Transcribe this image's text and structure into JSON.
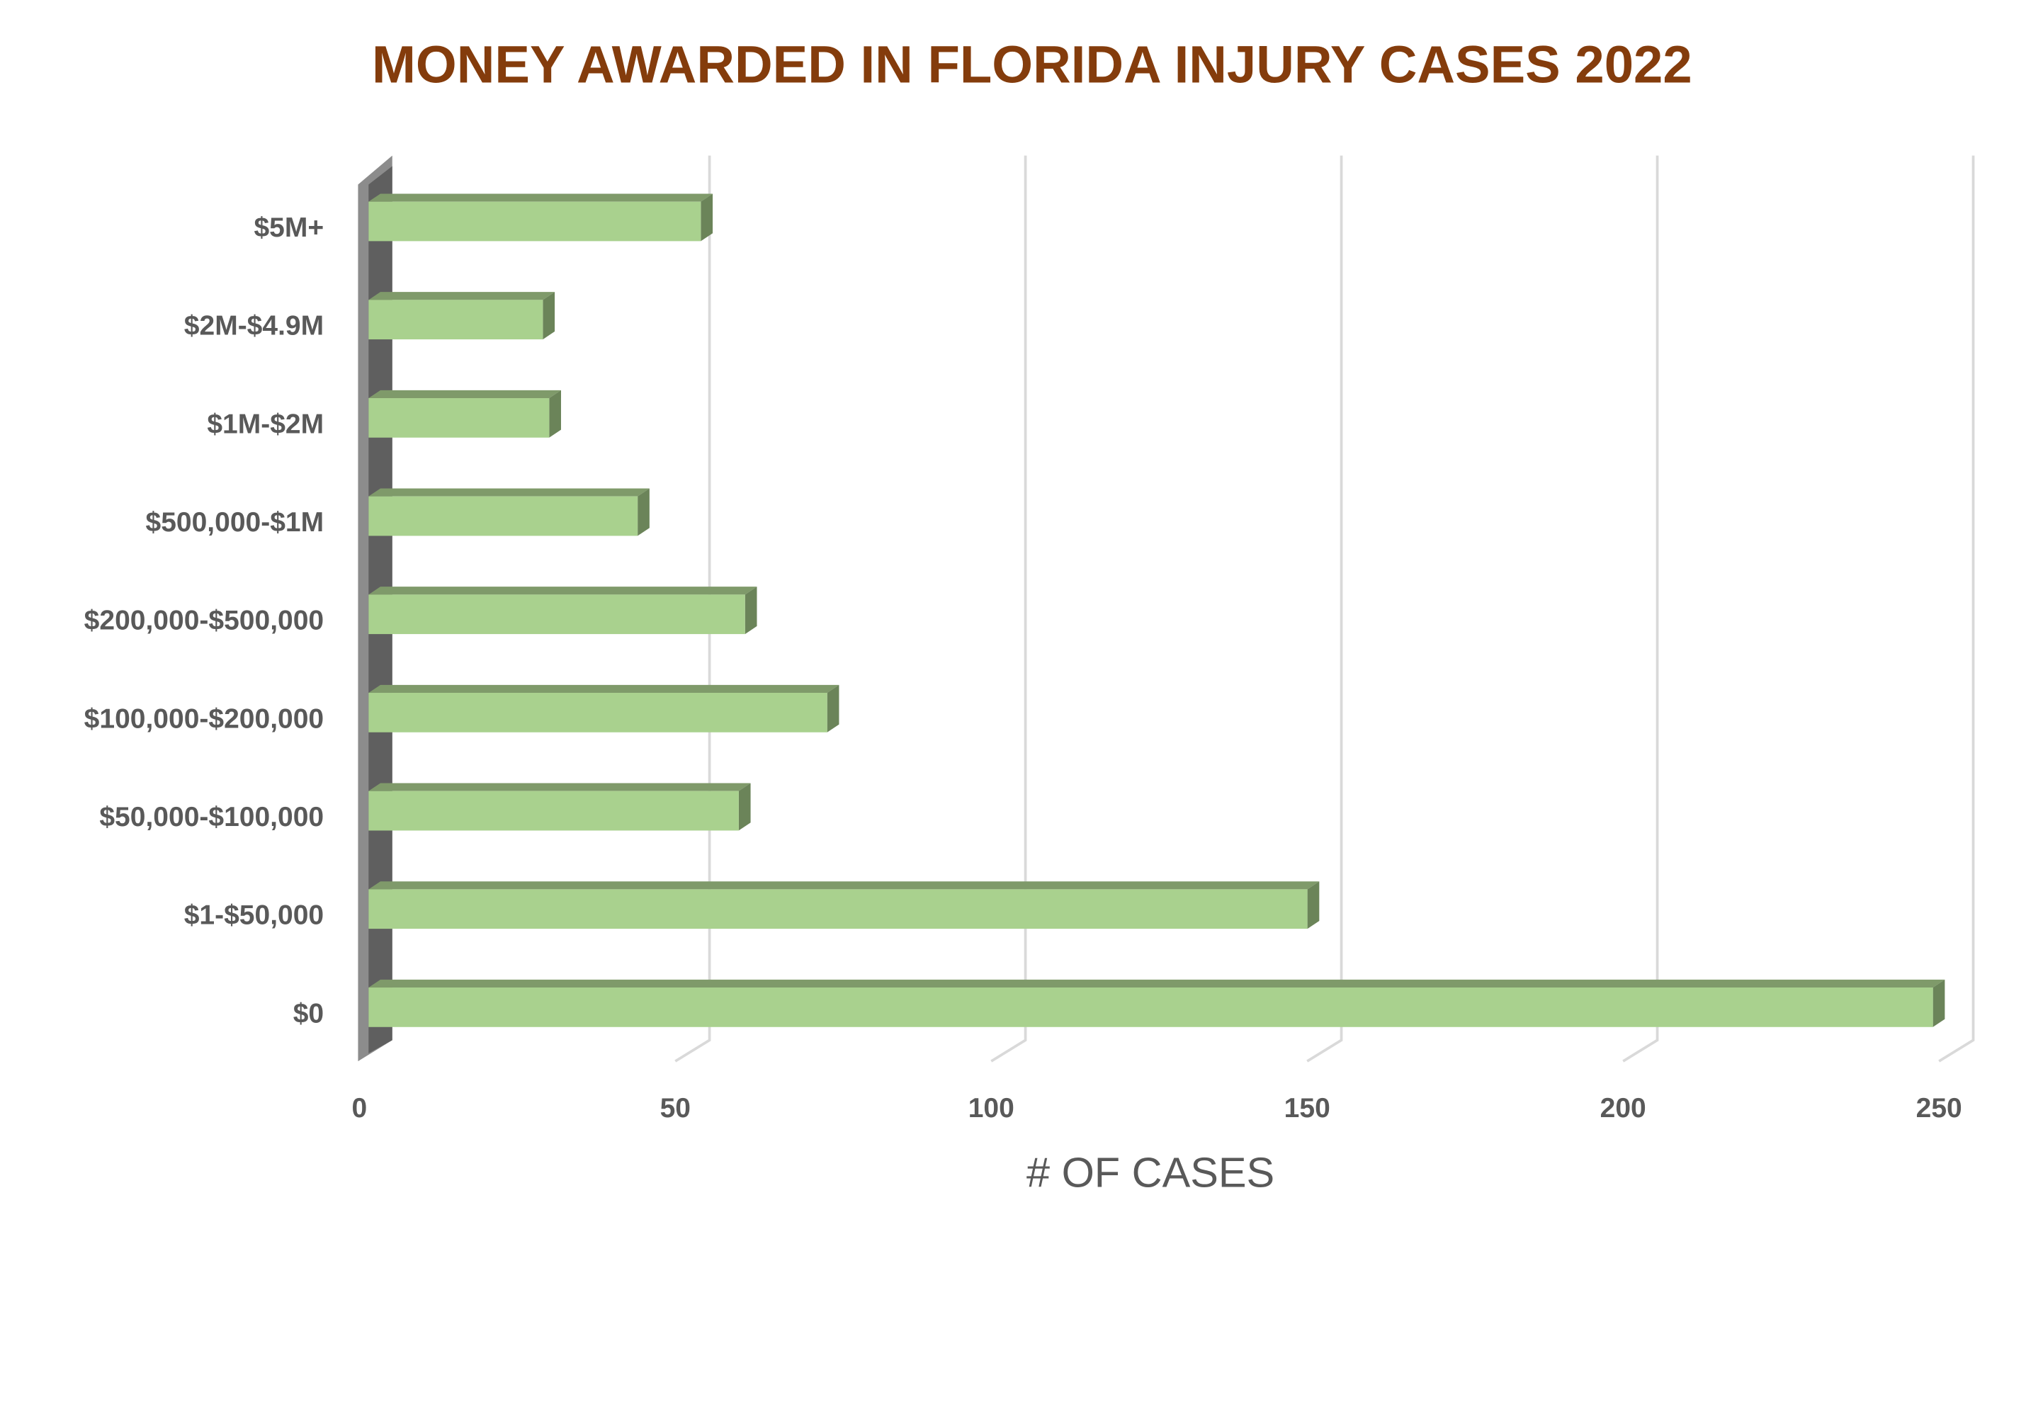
{
  "chart_data": {
    "type": "bar",
    "orientation": "horizontal",
    "title": "MONEY AWARDED IN FLORIDA INJURY CASES 2022",
    "categories": [
      "$0",
      "$1-$50,000",
      "$50,000-$100,000",
      "$100,000-$200,000",
      "$200,000-$500,000",
      "$500,000-$1M",
      "$1M-$2M",
      "$2M-$4.9M",
      "$5M+"
    ],
    "values": [
      248,
      149,
      59,
      73,
      60,
      43,
      29,
      28,
      53
    ],
    "color": "#a9d18e",
    "title_color": "#843c0c",
    "xlabel": "# OF CASES",
    "xlim": [
      0,
      250
    ],
    "xticks": [
      0,
      50,
      100,
      150,
      200,
      250
    ],
    "grid": true
  }
}
